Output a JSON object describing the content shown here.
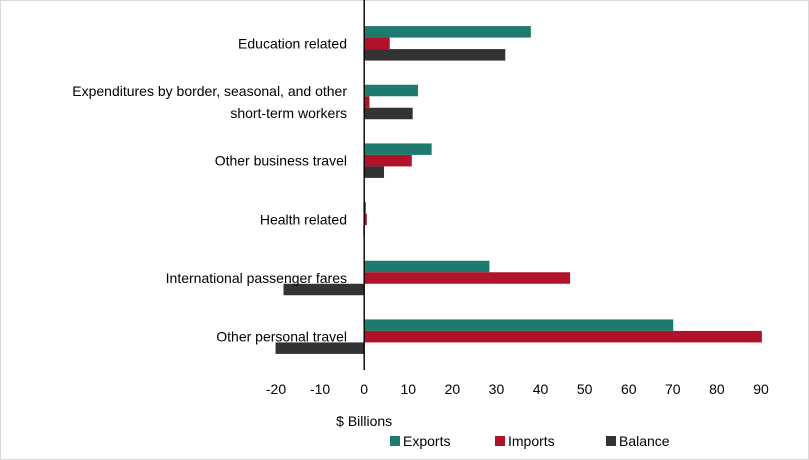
{
  "chart_data": {
    "type": "bar",
    "orientation": "horizontal",
    "categories": [
      [
        "Education related"
      ],
      [
        "Expenditures by border, seasonal, and other",
        "short-term workers"
      ],
      [
        "Other business travel"
      ],
      [
        "Health related"
      ],
      [
        "International passenger fares"
      ],
      [
        "Other personal travel"
      ]
    ],
    "series": [
      {
        "name": "Exports",
        "color": "#1f7a6e",
        "values": [
          37.8,
          12.2,
          15.3,
          0.4,
          28.4,
          70.1
        ]
      },
      {
        "name": "Imports",
        "color": "#b0122a",
        "values": [
          5.8,
          1.2,
          10.8,
          0.6,
          46.7,
          90.2
        ]
      },
      {
        "name": "Balance",
        "color": "#333333",
        "values": [
          32.0,
          11.0,
          4.5,
          -0.2,
          -18.3,
          -20.1
        ]
      }
    ],
    "xlim": [
      -20,
      90
    ],
    "xticks": [
      -20,
      -10,
      0,
      10,
      20,
      30,
      40,
      50,
      60,
      70,
      80,
      90
    ],
    "xlabel": "$ Billions",
    "grid": false,
    "legend_position": "bottom"
  }
}
